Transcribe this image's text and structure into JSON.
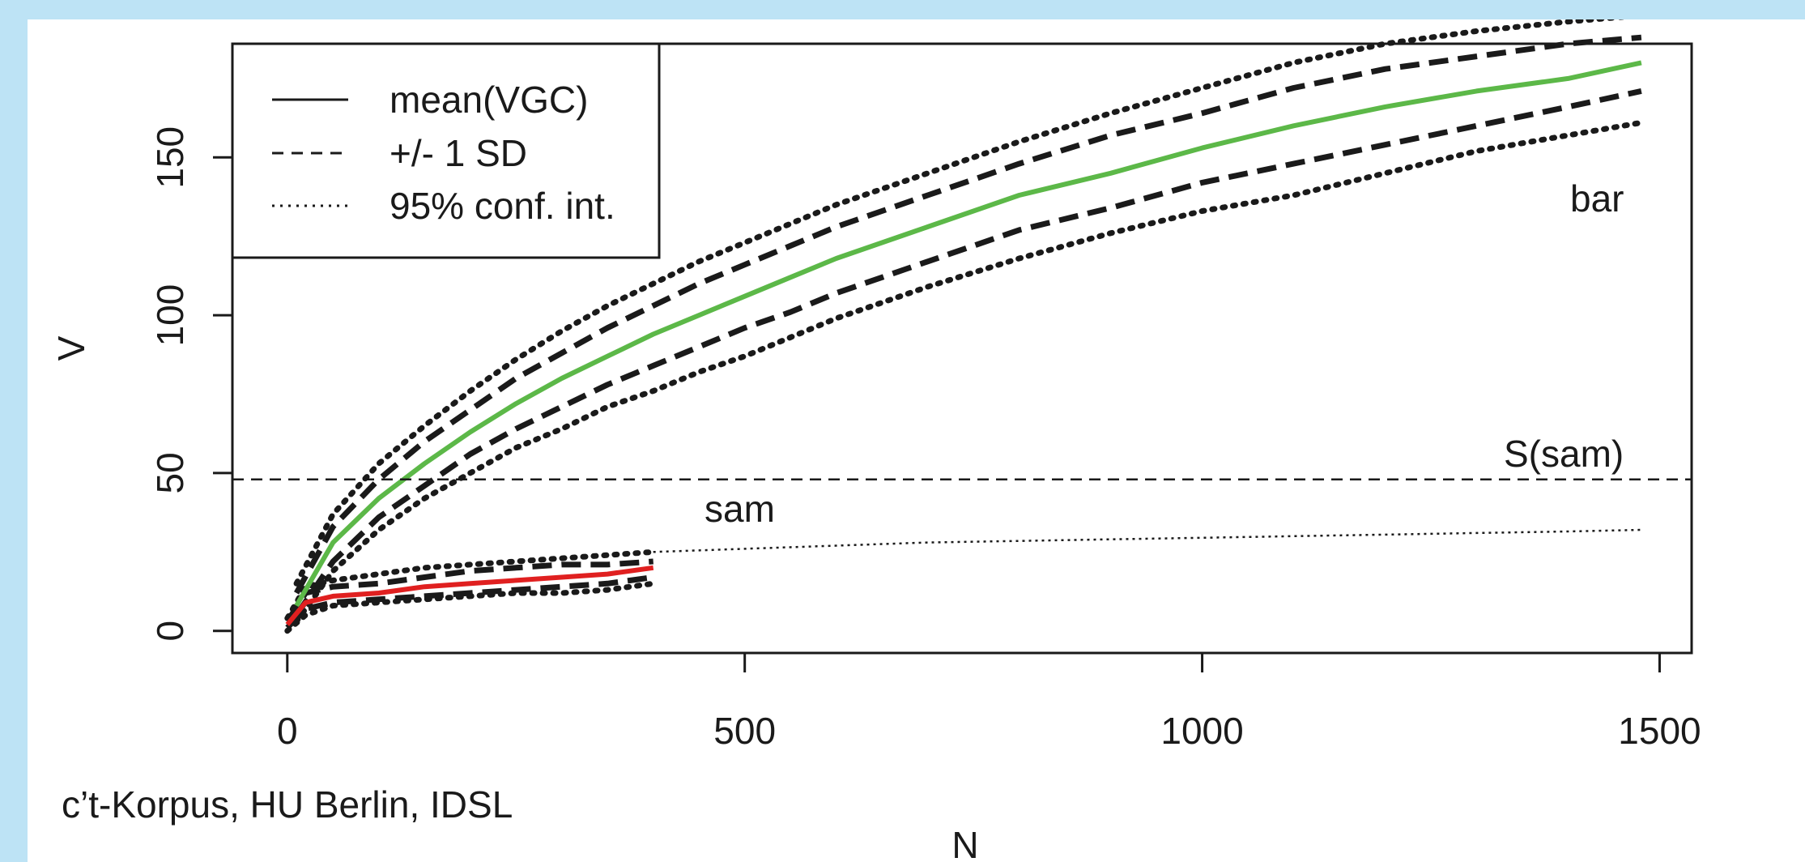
{
  "colors": {
    "background_border": "#bde3f5",
    "bar_curve": "#5cb848",
    "sam_curve": "#e02020",
    "bands": "#1a1a1a"
  },
  "chart_data": {
    "type": "line",
    "xlabel": "N",
    "ylabel": "V",
    "xlim": [
      -60,
      1535
    ],
    "ylim": [
      -7,
      186
    ],
    "x_ticks": [
      0,
      500,
      1000,
      1500
    ],
    "y_ticks": [
      0,
      50,
      100,
      150
    ],
    "x_tick_labels": [
      "0",
      "500",
      "1000",
      "1500"
    ],
    "y_tick_labels": [
      "0",
      "50",
      "100",
      "150"
    ],
    "grid": false,
    "legend": {
      "position": "top-left",
      "entries": [
        {
          "label": "mean(VGC)",
          "style": "solid"
        },
        {
          "label": "+/- 1 SD",
          "style": "dashed"
        },
        {
          "label": "95% conf. int.",
          "style": "dotted"
        }
      ]
    },
    "hline": {
      "y": 48,
      "label": "S(sam)",
      "style": "dashed"
    },
    "annotations": [
      {
        "text": "bar",
        "x": 1400,
        "y": 138
      },
      {
        "text": "sam",
        "x": 500,
        "y": 38
      },
      {
        "text": "S(sam)",
        "x": 1415,
        "y": 59
      }
    ],
    "caption": "c’t-Korpus, HU Berlin, IDSL",
    "series": [
      {
        "group": "bar",
        "color": "#5cb848",
        "style": "solid",
        "x": [
          10,
          50,
          100,
          150,
          200,
          250,
          300,
          350,
          400,
          450,
          500,
          550,
          600,
          700,
          800,
          900,
          1000,
          1100,
          1200,
          1300,
          1400,
          1480
        ],
        "mean": [
          8,
          28,
          42,
          53,
          63,
          72,
          80,
          87,
          94,
          100,
          106,
          112,
          118,
          128,
          138,
          145,
          153,
          160,
          166,
          171,
          175,
          180
        ],
        "upper_sd": [
          12,
          33,
          48,
          60,
          70,
          80,
          88,
          96,
          103,
          110,
          116,
          122,
          128,
          138,
          148,
          157,
          164,
          172,
          178,
          182,
          186,
          188
        ],
        "lower_sd": [
          5,
          22,
          36,
          46,
          56,
          64,
          71,
          78,
          84,
          90,
          96,
          101,
          107,
          117,
          127,
          134,
          142,
          148,
          154,
          160,
          166,
          171
        ],
        "upper_ci": [
          15,
          37,
          53,
          65,
          76,
          86,
          95,
          103,
          110,
          117,
          123,
          129,
          135,
          145,
          155,
          164,
          172,
          180,
          186,
          190,
          193,
          195
        ],
        "lower_ci": [
          3,
          19,
          32,
          42,
          50,
          58,
          64,
          71,
          76,
          82,
          87,
          93,
          99,
          109,
          118,
          126,
          133,
          138,
          145,
          152,
          157,
          161
        ]
      },
      {
        "group": "sam",
        "color": "#e02020",
        "style": "solid",
        "x": [
          0,
          20,
          50,
          100,
          150,
          200,
          250,
          300,
          350,
          400
        ],
        "mean": [
          2,
          9,
          11,
          12,
          14,
          15,
          16,
          17,
          18,
          20
        ],
        "upper_sd": [
          3,
          12,
          14,
          15,
          17,
          19,
          20,
          21,
          21,
          22
        ],
        "lower_sd": [
          1,
          7,
          9,
          10,
          11,
          12,
          13,
          14,
          15,
          17
        ],
        "upper_ci": [
          4,
          14,
          16,
          18,
          20,
          21,
          22,
          23,
          24,
          25
        ],
        "lower_ci": [
          0,
          5,
          8,
          9,
          10,
          11,
          12,
          12,
          13,
          15
        ]
      },
      {
        "group": "sam-extrapolation",
        "color": "#1a1a1a",
        "style": "dotted",
        "x": [
          400,
          500,
          600,
          700,
          800,
          900,
          1000,
          1100,
          1200,
          1300,
          1400,
          1480
        ],
        "mean": [
          25,
          26,
          27,
          28,
          28.5,
          29,
          29.5,
          30,
          30.5,
          31,
          31.5,
          32
        ]
      }
    ]
  }
}
